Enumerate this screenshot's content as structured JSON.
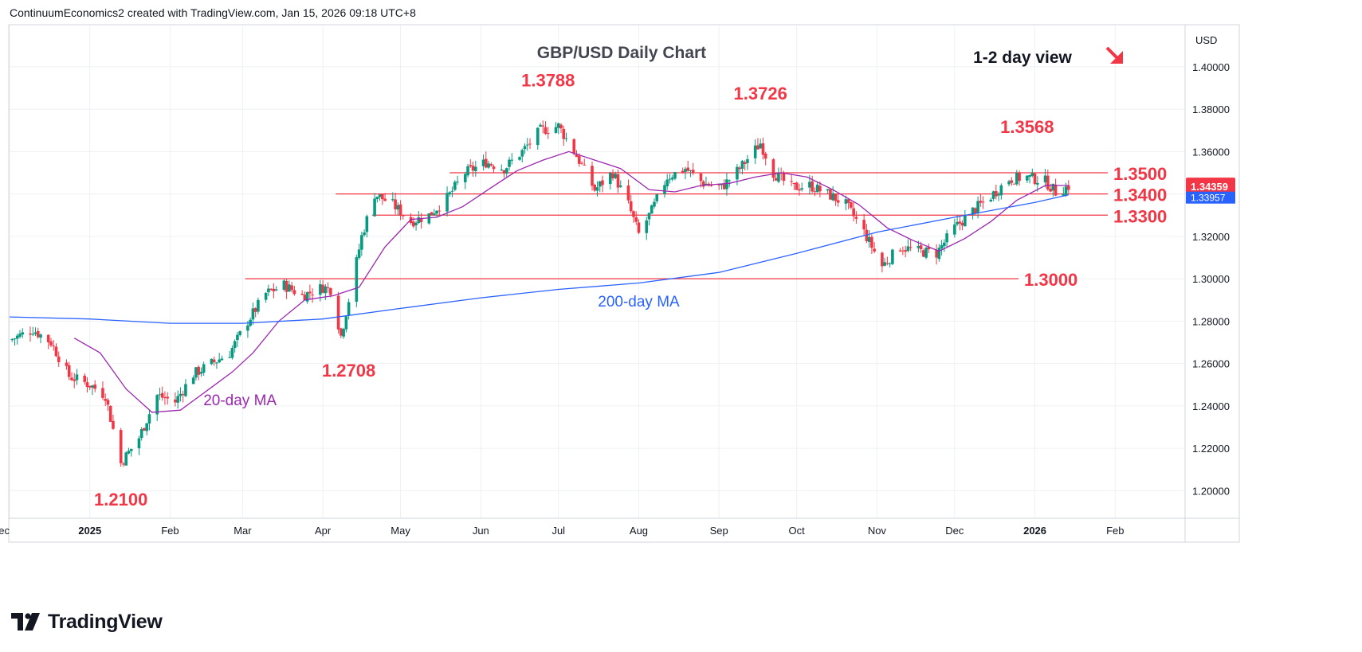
{
  "header": {
    "caption": "ContinuumEconomics2 created with TradingView.com, Jan 15, 2026 09:18 UTC+8"
  },
  "footer": {
    "brand": "TradingView"
  },
  "view_label": "1-2 day view",
  "view_direction_icon": "arrow-down-right-icon",
  "currency_label": "USD",
  "price_badges": {
    "last": "1.34359",
    "ma": "1.33957"
  },
  "colors": {
    "up": "#089981",
    "down": "#f23645",
    "ma20": "#9c27b0",
    "ma200": "#2962ff",
    "level": "#f23645",
    "annotation": "#f23645",
    "grid": "#eef0f4"
  },
  "chart_data": {
    "type": "candlestick",
    "title": "GBP/USD Daily Chart",
    "y_axis": {
      "ticks": [
        "1.40000",
        "1.38000",
        "1.36000",
        "1.34000",
        "1.32000",
        "1.30000",
        "1.28000",
        "1.26000",
        "1.24000",
        "1.22000",
        "1.20000"
      ],
      "range": [
        1.187,
        1.4195
      ]
    },
    "x_axis": {
      "ticks": [
        {
          "label": "ec",
          "date": "2024-12-01",
          "bold": false
        },
        {
          "label": "2025",
          "date": "2025-01-01",
          "bold": true
        },
        {
          "label": "Feb",
          "date": "2025-02-01",
          "bold": false
        },
        {
          "label": "Mar",
          "date": "2025-03-01",
          "bold": false
        },
        {
          "label": "Apr",
          "date": "2025-04-01",
          "bold": false
        },
        {
          "label": "May",
          "date": "2025-05-01",
          "bold": false
        },
        {
          "label": "Jun",
          "date": "2025-06-01",
          "bold": false
        },
        {
          "label": "Jul",
          "date": "2025-07-01",
          "bold": false
        },
        {
          "label": "Aug",
          "date": "2025-08-01",
          "bold": false
        },
        {
          "label": "Sep",
          "date": "2025-09-01",
          "bold": false
        },
        {
          "label": "Oct",
          "date": "2025-10-01",
          "bold": false
        },
        {
          "label": "Nov",
          "date": "2025-11-01",
          "bold": false
        },
        {
          "label": "Dec",
          "date": "2025-12-01",
          "bold": false
        },
        {
          "label": "2026",
          "date": "2026-01-01",
          "bold": true
        },
        {
          "label": "Feb",
          "date": "2026-02-01",
          "bold": false
        }
      ],
      "range": [
        "2024-12-01",
        "2026-02-28"
      ]
    },
    "grid": true,
    "close_path": [
      [
        "2024-12-01",
        1.271
      ],
      [
        "2024-12-10",
        1.276
      ],
      [
        "2024-12-17",
        1.27
      ],
      [
        "2024-12-24",
        1.254
      ],
      [
        "2025-01-01",
        1.25
      ],
      [
        "2025-01-07",
        1.245
      ],
      [
        "2025-01-13",
        1.213
      ],
      [
        "2025-01-20",
        1.225
      ],
      [
        "2025-01-27",
        1.245
      ],
      [
        "2025-02-03",
        1.242
      ],
      [
        "2025-02-10",
        1.255
      ],
      [
        "2025-02-17",
        1.26
      ],
      [
        "2025-02-24",
        1.265
      ],
      [
        "2025-03-03",
        1.28
      ],
      [
        "2025-03-10",
        1.293
      ],
      [
        "2025-03-17",
        1.297
      ],
      [
        "2025-03-24",
        1.292
      ],
      [
        "2025-04-01",
        1.296
      ],
      [
        "2025-04-04",
        1.295
      ],
      [
        "2025-04-08",
        1.273
      ],
      [
        "2025-04-11",
        1.29
      ],
      [
        "2025-04-16",
        1.32
      ],
      [
        "2025-04-21",
        1.34
      ],
      [
        "2025-04-28",
        1.335
      ],
      [
        "2025-05-05",
        1.327
      ],
      [
        "2025-05-12",
        1.33
      ],
      [
        "2025-05-19",
        1.338
      ],
      [
        "2025-05-26",
        1.35
      ],
      [
        "2025-06-03",
        1.355
      ],
      [
        "2025-06-10",
        1.352
      ],
      [
        "2025-06-17",
        1.36
      ],
      [
        "2025-06-24",
        1.37
      ],
      [
        "2025-07-01",
        1.372
      ],
      [
        "2025-07-08",
        1.358
      ],
      [
        "2025-07-15",
        1.342
      ],
      [
        "2025-07-22",
        1.35
      ],
      [
        "2025-07-28",
        1.335
      ],
      [
        "2025-08-01",
        1.321
      ],
      [
        "2025-08-06",
        1.332
      ],
      [
        "2025-08-12",
        1.348
      ],
      [
        "2025-08-19",
        1.352
      ],
      [
        "2025-08-26",
        1.345
      ],
      [
        "2025-09-02",
        1.343
      ],
      [
        "2025-09-09",
        1.352
      ],
      [
        "2025-09-17",
        1.364
      ],
      [
        "2025-09-22",
        1.35
      ],
      [
        "2025-09-29",
        1.343
      ],
      [
        "2025-10-06",
        1.344
      ],
      [
        "2025-10-13",
        1.34
      ],
      [
        "2025-10-20",
        1.335
      ],
      [
        "2025-10-27",
        1.322
      ],
      [
        "2025-11-03",
        1.306
      ],
      [
        "2025-11-10",
        1.315
      ],
      [
        "2025-11-17",
        1.313
      ],
      [
        "2025-11-24",
        1.312
      ],
      [
        "2025-12-01",
        1.324
      ],
      [
        "2025-12-08",
        1.332
      ],
      [
        "2025-12-15",
        1.339
      ],
      [
        "2025-12-22",
        1.347
      ],
      [
        "2025-12-29",
        1.348
      ],
      [
        "2026-01-05",
        1.346
      ],
      [
        "2026-01-09",
        1.341
      ],
      [
        "2026-01-14",
        1.3436
      ]
    ],
    "series": [
      {
        "name": "20-day MA",
        "values": [
          [
            "2024-12-26",
            1.272
          ],
          [
            "2025-01-05",
            1.265
          ],
          [
            "2025-01-15",
            1.248
          ],
          [
            "2025-01-25",
            1.237
          ],
          [
            "2025-02-05",
            1.238
          ],
          [
            "2025-02-15",
            1.247
          ],
          [
            "2025-02-25",
            1.256
          ],
          [
            "2025-03-05",
            1.265
          ],
          [
            "2025-03-15",
            1.28
          ],
          [
            "2025-03-25",
            1.29
          ],
          [
            "2025-04-05",
            1.292
          ],
          [
            "2025-04-15",
            1.296
          ],
          [
            "2025-04-25",
            1.315
          ],
          [
            "2025-05-05",
            1.328
          ],
          [
            "2025-05-15",
            1.329
          ],
          [
            "2025-05-25",
            1.334
          ],
          [
            "2025-06-05",
            1.343
          ],
          [
            "2025-06-15",
            1.351
          ],
          [
            "2025-06-25",
            1.356
          ],
          [
            "2025-07-05",
            1.36
          ],
          [
            "2025-07-15",
            1.356
          ],
          [
            "2025-07-25",
            1.352
          ],
          [
            "2025-08-05",
            1.342
          ],
          [
            "2025-08-15",
            1.341
          ],
          [
            "2025-08-25",
            1.344
          ],
          [
            "2025-09-05",
            1.345
          ],
          [
            "2025-09-15",
            1.348
          ],
          [
            "2025-09-25",
            1.35
          ],
          [
            "2025-10-05",
            1.348
          ],
          [
            "2025-10-15",
            1.342
          ],
          [
            "2025-10-25",
            1.335
          ],
          [
            "2025-11-05",
            1.324
          ],
          [
            "2025-11-15",
            1.318
          ],
          [
            "2025-11-25",
            1.313
          ],
          [
            "2025-12-05",
            1.319
          ],
          [
            "2025-12-15",
            1.327
          ],
          [
            "2025-12-25",
            1.337
          ],
          [
            "2026-01-05",
            1.344
          ],
          [
            "2026-01-14",
            1.344
          ]
        ]
      },
      {
        "name": "200-day MA",
        "values": [
          [
            "2024-12-01",
            1.282
          ],
          [
            "2025-01-01",
            1.281
          ],
          [
            "2025-02-01",
            1.279
          ],
          [
            "2025-03-01",
            1.279
          ],
          [
            "2025-04-01",
            1.281
          ],
          [
            "2025-05-01",
            1.286
          ],
          [
            "2025-06-01",
            1.291
          ],
          [
            "2025-07-01",
            1.295
          ],
          [
            "2025-08-01",
            1.298
          ],
          [
            "2025-09-01",
            1.303
          ],
          [
            "2025-10-01",
            1.312
          ],
          [
            "2025-11-01",
            1.322
          ],
          [
            "2025-12-01",
            1.329
          ],
          [
            "2026-01-01",
            1.336
          ],
          [
            "2026-01-14",
            1.3396
          ]
        ]
      }
    ],
    "levels": [
      {
        "label": "1.3500",
        "value": 1.35,
        "from": "2025-05-20"
      },
      {
        "label": "1.3400",
        "value": 1.34,
        "from": "2025-04-06"
      },
      {
        "label": "1.3300",
        "value": 1.33,
        "from": "2025-04-20"
      },
      {
        "label": "1.3000",
        "value": 1.3,
        "from": "2025-03-02"
      }
    ],
    "annotations": [
      {
        "text": "1.3788",
        "date": "2025-06-27",
        "value": 1.3788,
        "kind": "high"
      },
      {
        "text": "1.3726",
        "date": "2025-09-17",
        "value": 1.3726,
        "kind": "high"
      },
      {
        "text": "1.3568",
        "date": "2025-12-29",
        "value": 1.3568,
        "kind": "high"
      },
      {
        "text": "1.2708",
        "date": "2025-04-11",
        "value": 1.2708,
        "kind": "low"
      },
      {
        "text": "1.2100",
        "date": "2025-01-13",
        "value": 1.21,
        "kind": "low"
      }
    ],
    "ma_labels": [
      {
        "text": "20-day MA",
        "date": "2025-02-28",
        "value": 1.243
      },
      {
        "text": "200-day MA",
        "date": "2025-08-01",
        "value": 1.2895
      }
    ]
  }
}
